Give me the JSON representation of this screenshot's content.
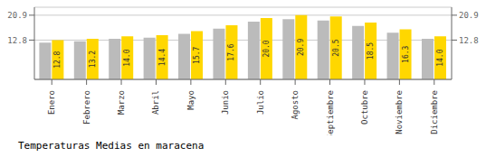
{
  "chart_data": {
    "type": "bar",
    "title": "Temperaturas Medias en maracena",
    "categories": [
      "Enero",
      "Febrero",
      "Marzo",
      "Abril",
      "Mayo",
      "Junio",
      "Julio",
      "Agosto",
      "Septiembre",
      "Octubre",
      "Noviembre",
      "Diciembre"
    ],
    "series": [
      {
        "color": "#BBBBBB",
        "values": [
          12.0,
          12.4,
          13.2,
          13.6,
          14.8,
          16.5,
          18.8,
          19.6,
          19.2,
          17.4,
          15.2,
          13.2
        ]
      },
      {
        "color": "#FFD700",
        "values": [
          12.8,
          13.2,
          14.0,
          14.4,
          15.7,
          17.6,
          20.0,
          20.9,
          20.5,
          18.5,
          16.3,
          14.0
        ],
        "data_labels": true,
        "value_labels": [
          "12.8",
          "13.2",
          "14.0",
          "14.4",
          "15.7",
          "17.6",
          "20.0",
          "20.9",
          "20.5",
          "18.5",
          "16.3",
          "14.0"
        ]
      }
    ],
    "ylim": [
      0,
      23.5
    ],
    "yticks": [
      12.8,
      20.9
    ],
    "y2lim": [
      0,
      23.5
    ],
    "y2ticks": [
      12.8,
      20.9
    ],
    "grid": true
  }
}
